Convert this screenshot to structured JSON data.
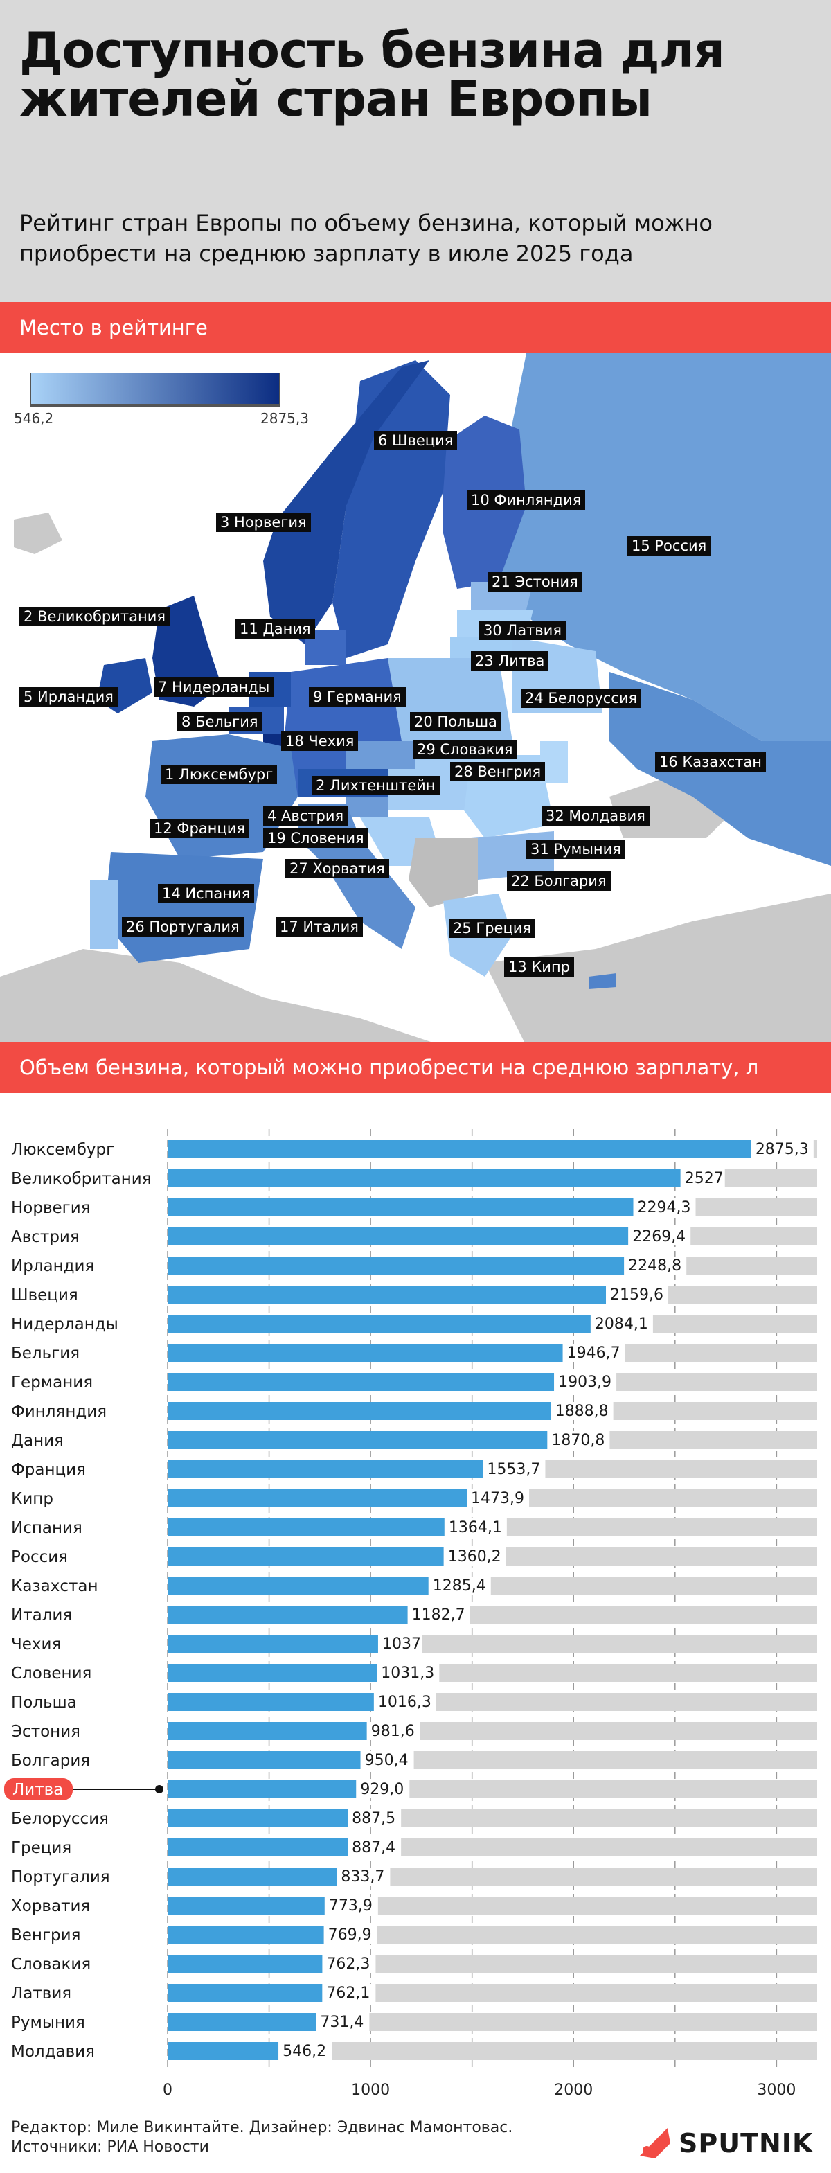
{
  "header": {
    "title": "Доступность бензина для жителей стран Европы",
    "subtitle": "Рейтинг стран Европы по объему бензина, который можно приобрести на среднюю зарплату в июле 2025 года"
  },
  "sections": {
    "rating": "Место в рейтинге",
    "volume": "Объем бензина, который можно приобрести на среднюю зарплату, л"
  },
  "map_legend": {
    "min": "546,2",
    "max": "2875,3",
    "colors": [
      "#a9d2f7",
      "#0c2d82"
    ]
  },
  "map_labels": [
    {
      "id": "sweden",
      "text": "6 Швеция"
    },
    {
      "id": "finland",
      "text": "10 Финляндия"
    },
    {
      "id": "norway",
      "text": "3 Норвегия"
    },
    {
      "id": "russia",
      "text": "15 Россия"
    },
    {
      "id": "estonia",
      "text": "21 Эстония"
    },
    {
      "id": "uk",
      "text": "2 Великобритания"
    },
    {
      "id": "denmark",
      "text": "11 Дания"
    },
    {
      "id": "latvia",
      "text": "30 Латвия"
    },
    {
      "id": "lithuania",
      "text": "23 Литва"
    },
    {
      "id": "netherlands",
      "text": "7 Нидерланды"
    },
    {
      "id": "ireland",
      "text": "5 Ирландия"
    },
    {
      "id": "germany",
      "text": "9 Германия"
    },
    {
      "id": "belarus",
      "text": "24 Белоруссия"
    },
    {
      "id": "belgium",
      "text": "8 Бельгия"
    },
    {
      "id": "poland",
      "text": "20 Польша"
    },
    {
      "id": "czechia",
      "text": "18 Чехия"
    },
    {
      "id": "slovakia",
      "text": "29 Словакия"
    },
    {
      "id": "luxembourg",
      "text": "1 Люксембург"
    },
    {
      "id": "hungary",
      "text": "28 Венгрия"
    },
    {
      "id": "kazakhstan",
      "text": "16 Казахстан"
    },
    {
      "id": "liechtenstein",
      "text": "2 Лихтенштейн"
    },
    {
      "id": "austria",
      "text": "4 Австрия"
    },
    {
      "id": "moldova",
      "text": "32 Молдавия"
    },
    {
      "id": "france",
      "text": "12 Франция"
    },
    {
      "id": "slovenia",
      "text": "19 Словения"
    },
    {
      "id": "romania",
      "text": "31 Румыния"
    },
    {
      "id": "croatia",
      "text": "27 Хорватия"
    },
    {
      "id": "bulgaria",
      "text": "22 Болгария"
    },
    {
      "id": "spain",
      "text": "14 Испания"
    },
    {
      "id": "portugal",
      "text": "26 Португалия"
    },
    {
      "id": "italy",
      "text": "17 Италия"
    },
    {
      "id": "greece",
      "text": "25 Греция"
    },
    {
      "id": "cyprus",
      "text": "13 Кипр"
    }
  ],
  "chart_data": {
    "type": "bar",
    "orientation": "horizontal",
    "title": "Объем бензина, который можно приобрести на среднюю зарплату, л",
    "categories": [
      "Люксембург",
      "Великобритания",
      "Норвегия",
      "Австрия",
      "Ирландия",
      "Швеция",
      "Нидерланды",
      "Бельгия",
      "Германия",
      "Финляндия",
      "Дания",
      "Франция",
      "Кипр",
      "Испания",
      "Россия",
      "Казахстан",
      "Италия",
      "Чехия",
      "Словения",
      "Польша",
      "Эстония",
      "Болгария",
      "Литва",
      "Белоруссия",
      "Греция",
      "Португалия",
      "Хорватия",
      "Венгрия",
      "Словакия",
      "Латвия",
      "Румыния",
      "Молдавия"
    ],
    "values": [
      2875.3,
      2527,
      2294.3,
      2269.4,
      2248.8,
      2159.6,
      2084.1,
      1946.7,
      1903.9,
      1888.8,
      1870.8,
      1553.7,
      1473.9,
      1364.1,
      1360.2,
      1285.4,
      1182.7,
      1037,
      1031.3,
      1016.3,
      981.6,
      950.4,
      929.0,
      887.5,
      887.4,
      833.7,
      773.9,
      769.9,
      762.3,
      762.1,
      731.4,
      546.2
    ],
    "value_labels": [
      "2875,3",
      "2527",
      "2294,3",
      "2269,4",
      "2248,8",
      "2159,6",
      "2084,1",
      "1946,7",
      "1903,9",
      "1888,8",
      "1870,8",
      "1553,7",
      "1473,9",
      "1364,1",
      "1360,2",
      "1285,4",
      "1182,7",
      "1037",
      "1031,3",
      "1016,3",
      "981,6",
      "950,4",
      "929,0",
      "887,5",
      "887,4",
      "833,7",
      "773,9",
      "769,9",
      "762,3",
      "762,1",
      "731,4",
      "546,2"
    ],
    "highlight": "Литва",
    "xlim": [
      0,
      3200
    ],
    "xticks": [
      0,
      1000,
      2000,
      3000
    ],
    "bar_color": "#3fa0dc",
    "track_color": "#d6d6d6",
    "highlight_color": "#f24b44",
    "grid": true
  },
  "footer": {
    "credits_line1": "Редактор: Миле Викинтайте.  Дизайнер: Эдвинас Мамонтовас.",
    "credits_line2": "Источники: РИА Новости",
    "logo": "SPUTNIK"
  }
}
